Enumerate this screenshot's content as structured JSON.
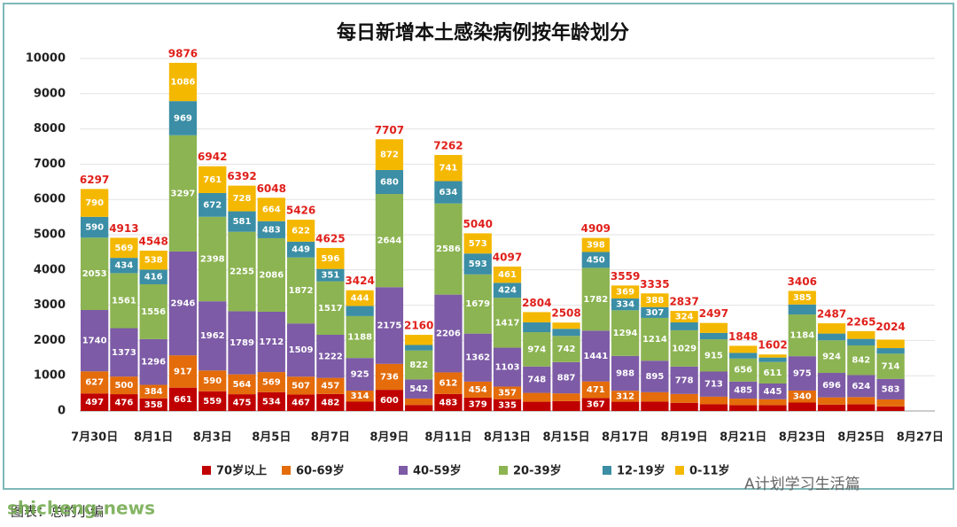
{
  "chart_data": {
    "type": "stacked_bar",
    "title": "每日新增本土感染病例按年龄划分",
    "categories": [
      "7月30日",
      null,
      "8月1日",
      null,
      "8月3日",
      null,
      "8月5日",
      null,
      "8月7日",
      null,
      "8月9日",
      null,
      "8月11日",
      null,
      "8月13日",
      null,
      "8月15日",
      null,
      "8月17日",
      null,
      "8月19日",
      null,
      "8月21日",
      null,
      "8月23日",
      null,
      "8月25日",
      null,
      "8月27日"
    ],
    "series": [
      {
        "name": "70岁以上",
        "color": "#c00000",
        "values": [
          497,
          476,
          358,
          661,
          559,
          475,
          534,
          467,
          482,
          264,
          600,
          171,
          483,
          379,
          335,
          262,
          281,
          367,
          262,
          266,
          232,
          190,
          165,
          166,
          239,
          181,
          187,
          129,
          null
        ]
      },
      {
        "name": "60-69岁",
        "color": "#e46c0a",
        "values": [
          627,
          500,
          384,
          917,
          590,
          564,
          569,
          507,
          457,
          314,
          736,
          182,
          612,
          454,
          357,
          251,
          218,
          471,
          312,
          265,
          250,
          215,
          185,
          168,
          340,
          204,
          207,
          199,
          null
        ]
      },
      {
        "name": "40-59岁",
        "color": "#7d5ba6",
        "values": [
          1740,
          1373,
          1296,
          2946,
          1962,
          1789,
          1712,
          1509,
          1222,
          925,
          2175,
          542,
          2206,
          1362,
          1103,
          748,
          887,
          1441,
          988,
          895,
          778,
          713,
          485,
          445,
          975,
          696,
          624,
          583,
          null
        ]
      },
      {
        "name": "20-39岁",
        "color": "#8cb452",
        "values": [
          2053,
          1561,
          1556,
          3297,
          2398,
          2255,
          2086,
          1872,
          1517,
          1188,
          2644,
          822,
          2586,
          1679,
          1417,
          974,
          742,
          1782,
          1294,
          1214,
          1029,
          915,
          656,
          611,
          1184,
          924,
          842,
          714,
          null
        ]
      },
      {
        "name": "12-19岁",
        "color": "#3b8ea5",
        "values": [
          590,
          434,
          416,
          969,
          672,
          581,
          483,
          449,
          351,
          289,
          680,
          155,
          634,
          593,
          424,
          280,
          203,
          450,
          334,
          307,
          224,
          181,
          157,
          126,
          283,
          191,
          185,
          158,
          null
        ]
      },
      {
        "name": "0-11岁",
        "color": "#f5b800",
        "values": [
          790,
          569,
          538,
          1086,
          761,
          728,
          664,
          622,
          596,
          444,
          872,
          288,
          741,
          573,
          461,
          289,
          177,
          398,
          369,
          388,
          324,
          283,
          200,
          86,
          385,
          291,
          220,
          241,
          null
        ]
      }
    ],
    "totals": [
      6297,
      4913,
      4548,
      9876,
      6942,
      6392,
      6048,
      5426,
      4625,
      3424,
      7707,
      2160,
      7262,
      5040,
      4097,
      2804,
      2508,
      4909,
      3559,
      3335,
      2837,
      2497,
      1848,
      1602,
      3406,
      2487,
      2265,
      2024,
      null
    ],
    "ylim": [
      0,
      10000
    ],
    "yticks": [
      0,
      1000,
      2000,
      3000,
      4000,
      5000,
      6000,
      7000,
      8000,
      9000,
      10000
    ],
    "grid": true,
    "footer": "图表：总的小编",
    "watermark": "A计划学习生活篇",
    "site": "shicheng.news"
  }
}
